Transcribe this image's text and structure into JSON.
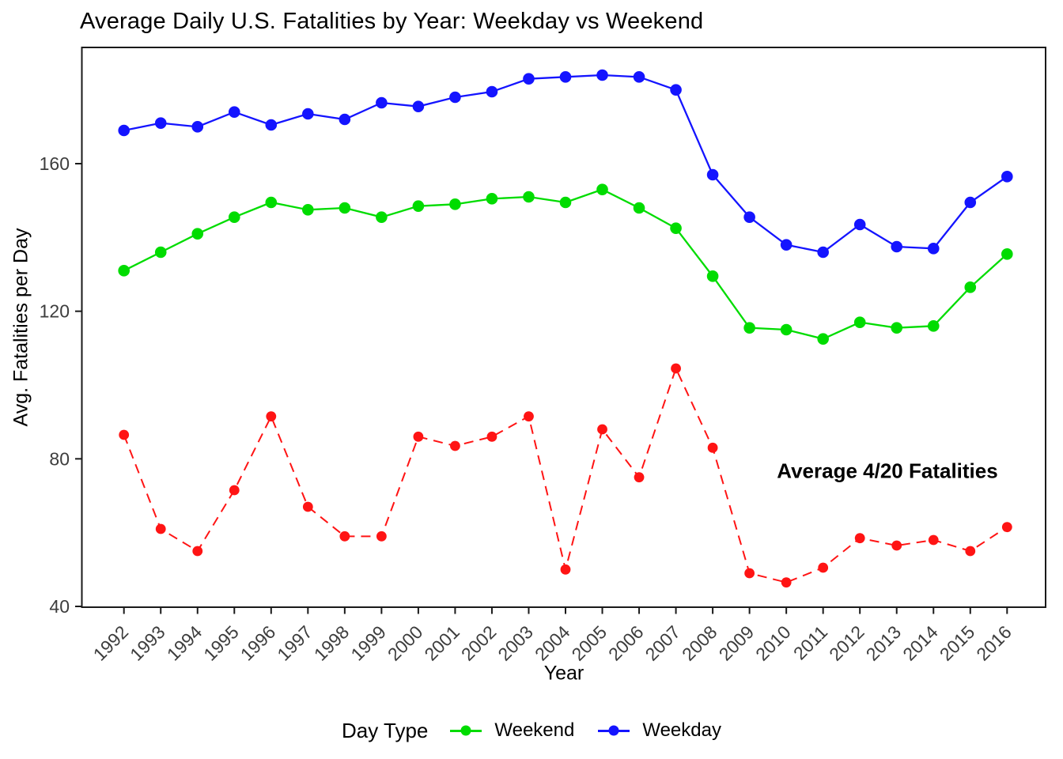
{
  "title": "Average Daily U.S. Fatalities by Year: Weekday vs Weekend",
  "axes": {
    "xlabel": "Year",
    "ylabel": "Avg. Fatalities per Day"
  },
  "annotation": {
    "text": "Average 4/20 Fatalities"
  },
  "legend": {
    "title": "Day Type",
    "position": "bottom",
    "entries": [
      {
        "label": "Weekend",
        "color": "#00DC00"
      },
      {
        "label": "Weekday",
        "color": "#1414FF"
      }
    ]
  },
  "chart_data": {
    "type": "line",
    "title": "Average Daily U.S. Fatalities by Year: Weekday vs Weekend",
    "xlabel": "Year",
    "ylabel": "Avg. Fatalities per Day",
    "x": [
      1992,
      1993,
      1994,
      1995,
      1996,
      1997,
      1998,
      1999,
      2000,
      2001,
      2002,
      2003,
      2004,
      2005,
      2006,
      2007,
      2008,
      2009,
      2010,
      2011,
      2012,
      2013,
      2014,
      2015,
      2016
    ],
    "series": [
      {
        "name": "Weekday",
        "color": "#1414FF",
        "style": "solid",
        "values": [
          169,
          171,
          170,
          174,
          170.5,
          173.5,
          172,
          176.5,
          175.5,
          178,
          179.5,
          183,
          183.5,
          184,
          183.5,
          180,
          157,
          145.5,
          138,
          136,
          143.5,
          137.5,
          137,
          149.5,
          156.5
        ]
      },
      {
        "name": "Weekend",
        "color": "#00DC00",
        "style": "solid",
        "values": [
          131,
          136,
          141,
          145.5,
          149.5,
          147.5,
          148,
          145.5,
          148.5,
          149,
          150.5,
          151,
          149.5,
          153,
          148,
          142.5,
          129.5,
          115.5,
          115,
          112.5,
          117,
          115.5,
          116,
          126.5,
          135.5
        ]
      },
      {
        "name": "Average 4/20 Fatalities",
        "color": "#FF1414",
        "style": "dashed",
        "values": [
          86.5,
          61,
          55,
          71.5,
          91.5,
          67,
          59,
          59,
          86,
          83.5,
          86,
          91.5,
          50,
          88,
          75,
          104.5,
          83,
          49,
          46.5,
          50.5,
          58.5,
          56.5,
          58,
          55,
          61.5
        ]
      }
    ],
    "yticks": [
      40,
      80,
      120,
      160
    ],
    "ylim": [
      40,
      191
    ],
    "grid": false,
    "legend_position": "bottom",
    "annotation_text": "Average 4/20 Fatalities"
  }
}
